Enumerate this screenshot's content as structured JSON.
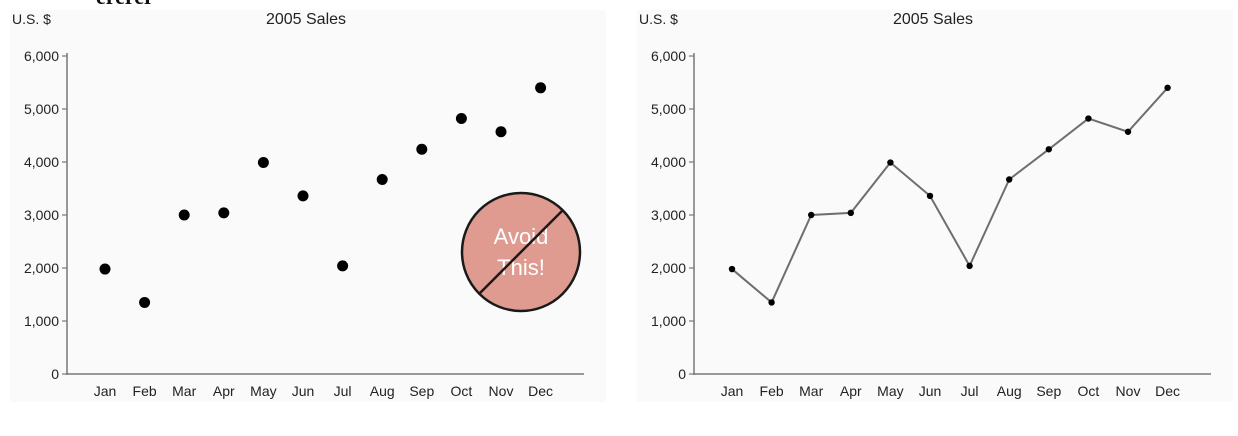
{
  "heading_fragment": "ererer",
  "stamp": {
    "line1": "Avoid",
    "line2": "This!"
  },
  "chart_data": [
    {
      "type": "scatter",
      "title": "2005 Sales",
      "unit_label": "U.S. $",
      "categories": [
        "Jan",
        "Feb",
        "Mar",
        "Apr",
        "May",
        "Jun",
        "Jul",
        "Aug",
        "Sep",
        "Oct",
        "Nov",
        "Dec"
      ],
      "values": [
        1980,
        1350,
        3000,
        3040,
        3990,
        3360,
        2040,
        3670,
        4240,
        4820,
        4570,
        5400
      ],
      "ylim": [
        0,
        6000
      ],
      "yticks": [
        0,
        1000,
        2000,
        3000,
        4000,
        5000,
        6000
      ],
      "ytick_labels": [
        "0",
        "1,000",
        "2,000",
        "3,000",
        "4,000",
        "5,000",
        "6,000"
      ],
      "grid": false,
      "marker_color": "#000000"
    },
    {
      "type": "line",
      "title": "2005 Sales",
      "unit_label": "U.S. $",
      "categories": [
        "Jan",
        "Feb",
        "Mar",
        "Apr",
        "May",
        "Jun",
        "Jul",
        "Aug",
        "Sep",
        "Oct",
        "Nov",
        "Dec"
      ],
      "values": [
        1980,
        1350,
        3000,
        3040,
        3990,
        3360,
        2040,
        3670,
        4240,
        4820,
        4570,
        5400
      ],
      "ylim": [
        0,
        6000
      ],
      "yticks": [
        0,
        1000,
        2000,
        3000,
        4000,
        5000,
        6000
      ],
      "ytick_labels": [
        "0",
        "1,000",
        "2,000",
        "3,000",
        "4,000",
        "5,000",
        "6,000"
      ],
      "grid": false,
      "line_color": "#6e6e6e",
      "marker_color": "#000000"
    }
  ]
}
